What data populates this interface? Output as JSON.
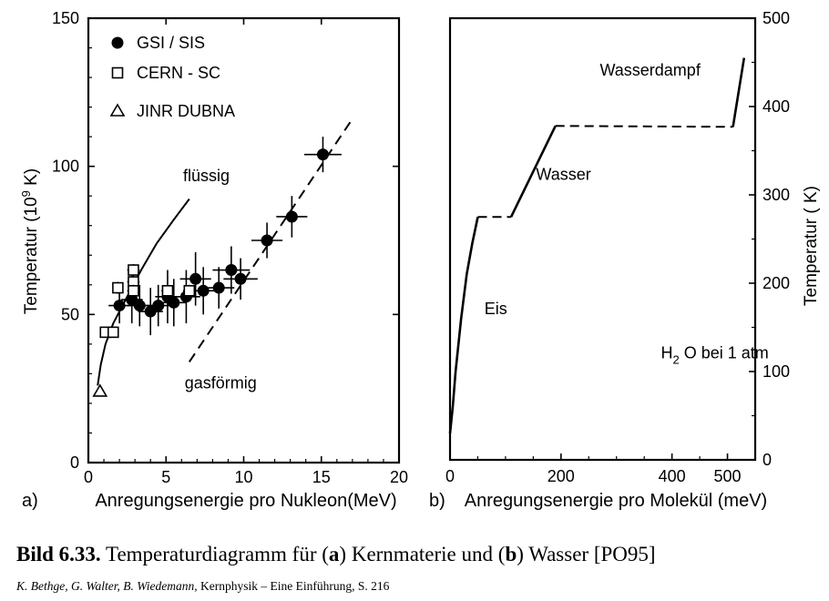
{
  "caption": {
    "label": "Bild 6.33.",
    "text_pre": "Temperaturdiagramm für (",
    "a": "a",
    "text_mid": ") Kernmaterie und (",
    "b": "b",
    "text_post": ") Wasser [PO95]"
  },
  "source": {
    "authors": "K. Bethge, G. Walter, B. Wiedemann,",
    "rest": "Kernphysik – Eine Einführung, S. 216"
  },
  "chart_data": [
    {
      "type": "scatter",
      "panel_label": "a)",
      "xlabel": "Anregungsenergie pro Nukleon(MeV)",
      "ylabel": "Temperatur",
      "ylabel_unit_pre": "(10",
      "ylabel_unit_exp": "9",
      "ylabel_unit_post": " K)",
      "xlim": [
        0,
        20
      ],
      "ylim": [
        0,
        150
      ],
      "xticks": [
        0,
        5,
        10,
        15,
        20
      ],
      "yticks": [
        0,
        50,
        100,
        150
      ],
      "grid": false,
      "legend_position": "top-left",
      "series": [
        {
          "name": "GSI / SIS",
          "marker": "filled-circle",
          "points": [
            {
              "x": 2.0,
              "y": 53,
              "xerr": 0.7,
              "yerr": 6
            },
            {
              "x": 2.8,
              "y": 55,
              "xerr": 0.7,
              "yerr": 8
            },
            {
              "x": 3.3,
              "y": 53,
              "xerr": 0.8,
              "yerr": 7
            },
            {
              "x": 4.0,
              "y": 51,
              "xerr": 0.8,
              "yerr": 8
            },
            {
              "x": 4.5,
              "y": 53,
              "xerr": 0.8,
              "yerr": 7
            },
            {
              "x": 5.1,
              "y": 56,
              "xerr": 0.8,
              "yerr": 9
            },
            {
              "x": 5.5,
              "y": 54,
              "xerr": 0.8,
              "yerr": 8
            },
            {
              "x": 6.3,
              "y": 56,
              "xerr": 0.9,
              "yerr": 9
            },
            {
              "x": 6.9,
              "y": 62,
              "xerr": 1.0,
              "yerr": 9
            },
            {
              "x": 7.4,
              "y": 58,
              "xerr": 1.0,
              "yerr": 8
            },
            {
              "x": 8.4,
              "y": 59,
              "xerr": 1.0,
              "yerr": 7
            },
            {
              "x": 9.2,
              "y": 65,
              "xerr": 1.2,
              "yerr": 8
            },
            {
              "x": 9.8,
              "y": 62,
              "xerr": 1.1,
              "yerr": 7
            },
            {
              "x": 11.5,
              "y": 75,
              "xerr": 1.0,
              "yerr": 6
            },
            {
              "x": 13.1,
              "y": 83,
              "xerr": 1.0,
              "yerr": 7
            },
            {
              "x": 15.1,
              "y": 104,
              "xerr": 1.2,
              "yerr": 6
            }
          ]
        },
        {
          "name": "CERN - SC",
          "marker": "open-square",
          "points": [
            {
              "x": 1.1,
              "y": 44,
              "xerr": 0.3,
              "yerr": 0
            },
            {
              "x": 1.6,
              "y": 44,
              "xerr": 0.3,
              "yerr": 0
            },
            {
              "x": 1.9,
              "y": 59,
              "xerr": 0.3,
              "yerr": 2
            },
            {
              "x": 2.9,
              "y": 65,
              "xerr": 0.4,
              "yerr": 2
            },
            {
              "x": 2.9,
              "y": 61,
              "xerr": 0.4,
              "yerr": 2
            },
            {
              "x": 2.9,
              "y": 58,
              "xerr": 0.4,
              "yerr": 2
            },
            {
              "x": 5.1,
              "y": 58,
              "xerr": 0.4,
              "yerr": 2
            },
            {
              "x": 6.5,
              "y": 58,
              "xerr": 0.4,
              "yerr": 2
            }
          ]
        },
        {
          "name": "JINR DUBNA",
          "marker": "open-triangle",
          "points": [
            {
              "x": 0.75,
              "y": 24,
              "xerr": 0,
              "yerr": 0
            }
          ]
        }
      ],
      "curves": [
        {
          "label": "flüssig",
          "style": "solid",
          "points": [
            [
              0.6,
              26
            ],
            [
              0.8,
              33
            ],
            [
              1.1,
              40
            ],
            [
              1.6,
              47
            ],
            [
              2.1,
              52
            ],
            [
              2.7,
              58
            ],
            [
              3.4,
              65
            ],
            [
              4.4,
              74
            ],
            [
              5.5,
              82
            ],
            [
              6.5,
              89
            ]
          ],
          "label_pos": [
            6.1,
            95
          ]
        },
        {
          "label": "gasförmig",
          "style": "dashed",
          "points": [
            [
              6.5,
              34
            ],
            [
              17.0,
              116
            ]
          ],
          "label_pos": [
            6.2,
            25
          ]
        }
      ]
    },
    {
      "type": "line",
      "panel_label": "b)",
      "xlabel": "Anregungsenergie pro Molekül (meV)",
      "ylabel": "Temperatur",
      "ylabel_unit": "( K)",
      "xlim": [
        0,
        550
      ],
      "ylim": [
        0,
        500
      ],
      "xticks": [
        0,
        200,
        400,
        500
      ],
      "yticks": [
        0,
        100,
        200,
        300,
        400,
        500
      ],
      "yaxis_side": "right",
      "grid": false,
      "annotation_sub_main": "H",
      "annotation_sub": "2",
      "annotation_rest": " O bei 1 atm",
      "annotation_pos": [
        380,
        115
      ],
      "series": [
        {
          "name": "",
          "segments": [
            {
              "style": "solid",
              "points": [
                [
                  0,
                  30
                ],
                [
                  5,
                  60
                ],
                [
                  10,
                  100
                ],
                [
                  20,
                  160
                ],
                [
                  30,
                  210
                ],
                [
                  40,
                  245
                ],
                [
                  50,
                  275
                ]
              ]
            },
            {
              "style": "dashed",
              "points": [
                [
                  50,
                  275
                ],
                [
                  110,
                  275
                ]
              ]
            },
            {
              "style": "solid",
              "points": [
                [
                  110,
                  275
                ],
                [
                  190,
                  378
                ]
              ]
            },
            {
              "style": "dashed",
              "points": [
                [
                  190,
                  378
                ],
                [
                  510,
                  377
                ]
              ]
            },
            {
              "style": "solid",
              "points": [
                [
                  510,
                  377
                ],
                [
                  530,
                  455
                ]
              ]
            }
          ]
        }
      ],
      "region_labels": [
        {
          "text": "Eis",
          "x": 62,
          "y": 165
        },
        {
          "text": "Wasser",
          "x": 155,
          "y": 317
        },
        {
          "text": "Wasserdampf",
          "x": 270,
          "y": 435
        }
      ]
    }
  ]
}
